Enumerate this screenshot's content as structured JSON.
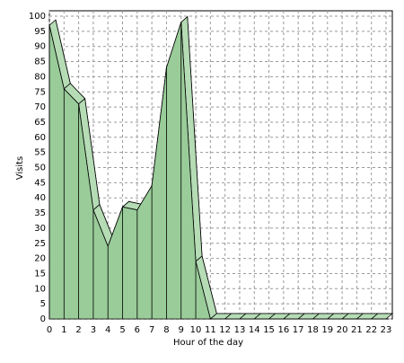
{
  "chart_data": {
    "type": "area",
    "x_label": "Hour of the day",
    "y_label": "Visits",
    "x": [
      0,
      1,
      2,
      3,
      4,
      5,
      6,
      7,
      8,
      9,
      10,
      11,
      12,
      13,
      14,
      15,
      16,
      17,
      18,
      19,
      20,
      21,
      22,
      23
    ],
    "series": [
      {
        "name": "Visits",
        "color": "#99cc99",
        "values": [
          97,
          76,
          71,
          36,
          24,
          37,
          36,
          44,
          83,
          98,
          19,
          0,
          0,
          0,
          0,
          0,
          0,
          0,
          0,
          0,
          0,
          0,
          0,
          0
        ]
      }
    ],
    "xlim": [
      0,
      23
    ],
    "xticks": [
      0,
      1,
      2,
      3,
      4,
      5,
      6,
      7,
      8,
      9,
      10,
      11,
      12,
      13,
      14,
      15,
      16,
      17,
      18,
      19,
      20,
      21,
      22,
      23
    ],
    "ylim": [
      0,
      100
    ],
    "yticks": [
      0,
      5,
      10,
      15,
      20,
      25,
      30,
      35,
      40,
      45,
      50,
      55,
      60,
      65,
      70,
      75,
      80,
      85,
      90,
      95,
      100
    ],
    "grid": true
  }
}
